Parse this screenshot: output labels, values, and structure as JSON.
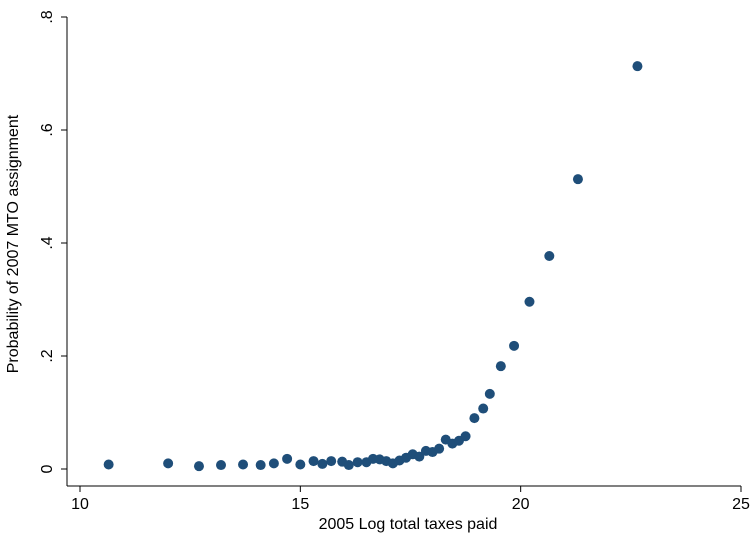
{
  "chart_data": {
    "type": "scatter",
    "title": "",
    "xlabel": "2005 Log total taxes paid",
    "ylabel": "Probability of 2007 MTO assignment",
    "xlim": [
      10,
      25
    ],
    "ylim": [
      0,
      0.8
    ],
    "x_ticks": [
      10,
      15,
      20,
      25
    ],
    "x_tick_labels": [
      "10",
      "15",
      "20",
      "25"
    ],
    "y_ticks": [
      0,
      0.2,
      0.4,
      0.6,
      0.8
    ],
    "y_tick_labels": [
      "0",
      ".2",
      ".4",
      ".6",
      ".8"
    ],
    "grid": false,
    "legend": "none",
    "marker_color": "#1f4e79",
    "points": [
      {
        "x": 10.65,
        "y": 0.008
      },
      {
        "x": 12.0,
        "y": 0.01
      },
      {
        "x": 12.7,
        "y": 0.005
      },
      {
        "x": 13.2,
        "y": 0.007
      },
      {
        "x": 13.7,
        "y": 0.008
      },
      {
        "x": 14.1,
        "y": 0.007
      },
      {
        "x": 14.4,
        "y": 0.01
      },
      {
        "x": 14.7,
        "y": 0.018
      },
      {
        "x": 15.0,
        "y": 0.008
      },
      {
        "x": 15.3,
        "y": 0.014
      },
      {
        "x": 15.5,
        "y": 0.009
      },
      {
        "x": 15.7,
        "y": 0.014
      },
      {
        "x": 15.95,
        "y": 0.013
      },
      {
        "x": 16.1,
        "y": 0.007
      },
      {
        "x": 16.3,
        "y": 0.012
      },
      {
        "x": 16.5,
        "y": 0.012
      },
      {
        "x": 16.65,
        "y": 0.018
      },
      {
        "x": 16.8,
        "y": 0.017
      },
      {
        "x": 16.95,
        "y": 0.014
      },
      {
        "x": 17.1,
        "y": 0.01
      },
      {
        "x": 17.25,
        "y": 0.015
      },
      {
        "x": 17.4,
        "y": 0.02
      },
      {
        "x": 17.55,
        "y": 0.026
      },
      {
        "x": 17.7,
        "y": 0.022
      },
      {
        "x": 17.85,
        "y": 0.032
      },
      {
        "x": 18.0,
        "y": 0.03
      },
      {
        "x": 18.15,
        "y": 0.036
      },
      {
        "x": 18.3,
        "y": 0.052
      },
      {
        "x": 18.45,
        "y": 0.045
      },
      {
        "x": 18.6,
        "y": 0.05
      },
      {
        "x": 18.75,
        "y": 0.058
      },
      {
        "x": 18.95,
        "y": 0.09
      },
      {
        "x": 19.15,
        "y": 0.107
      },
      {
        "x": 19.3,
        "y": 0.133
      },
      {
        "x": 19.55,
        "y": 0.182
      },
      {
        "x": 19.85,
        "y": 0.218
      },
      {
        "x": 20.2,
        "y": 0.296
      },
      {
        "x": 20.65,
        "y": 0.377
      },
      {
        "x": 21.3,
        "y": 0.513
      },
      {
        "x": 22.65,
        "y": 0.713
      }
    ]
  }
}
